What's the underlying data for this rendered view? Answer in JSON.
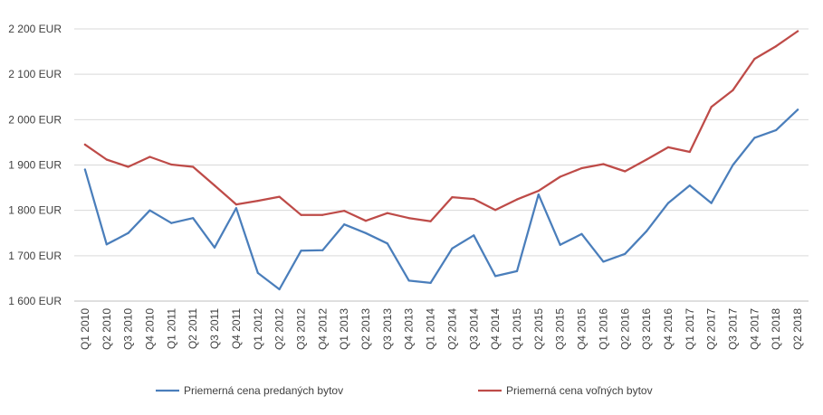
{
  "chart_data": {
    "type": "line",
    "categories": [
      "Q1 2010",
      "Q2 2010",
      "Q3 2010",
      "Q4 2010",
      "Q1 2011",
      "Q2 2011",
      "Q3 2011",
      "Q4 2011",
      "Q1 2012",
      "Q2 2012",
      "Q3 2012",
      "Q4 2012",
      "Q1 2013",
      "Q2 2013",
      "Q3 2013",
      "Q4 2013",
      "Q1 2014",
      "Q2 2014",
      "Q3 2014",
      "Q4 2014",
      "Q1 2015",
      "Q2 2015",
      "Q3 2015",
      "Q4 2015",
      "Q1 2016",
      "Q2 2016",
      "Q3 2016",
      "Q4 2016",
      "Q1 2017",
      "Q2 2017",
      "Q3 2017",
      "Q4 2017",
      "Q1 2018",
      "Q2 2018"
    ],
    "series": [
      {
        "name": "Priemerná cena predaných bytov",
        "color": "#4a7ebb",
        "values": [
          1890,
          1725,
          1750,
          1800,
          1772,
          1783,
          1718,
          1805,
          1662,
          1626,
          1711,
          1712,
          1769,
          1750,
          1727,
          1645,
          1640,
          1716,
          1745,
          1655,
          1666,
          1835,
          1724,
          1748,
          1687,
          1704,
          1754,
          1816,
          1855,
          1816,
          1900,
          1960,
          1977,
          2022
        ]
      },
      {
        "name": "Priemerná cena voľných bytov",
        "color": "#be4b48",
        "values": [
          1945,
          1912,
          1896,
          1918,
          1901,
          1896,
          1855,
          1813,
          1821,
          1830,
          1790,
          1790,
          1799,
          1777,
          1794,
          1783,
          1776,
          1829,
          1825,
          1801,
          1824,
          1843,
          1874,
          1893,
          1902,
          1886,
          1912,
          1939,
          1929,
          2028,
          2065,
          2134,
          2162,
          2195
        ]
      }
    ],
    "y_ticks": [
      "1 600 EUR",
      "1 700 EUR",
      "1 800 EUR",
      "1 900 EUR",
      "2 000 EUR",
      "2 100 EUR",
      "2 200 EUR"
    ],
    "ylim": [
      1600,
      2200
    ],
    "grid": true,
    "legend": "bottom",
    "title": "",
    "xlabel": "",
    "ylabel": ""
  }
}
